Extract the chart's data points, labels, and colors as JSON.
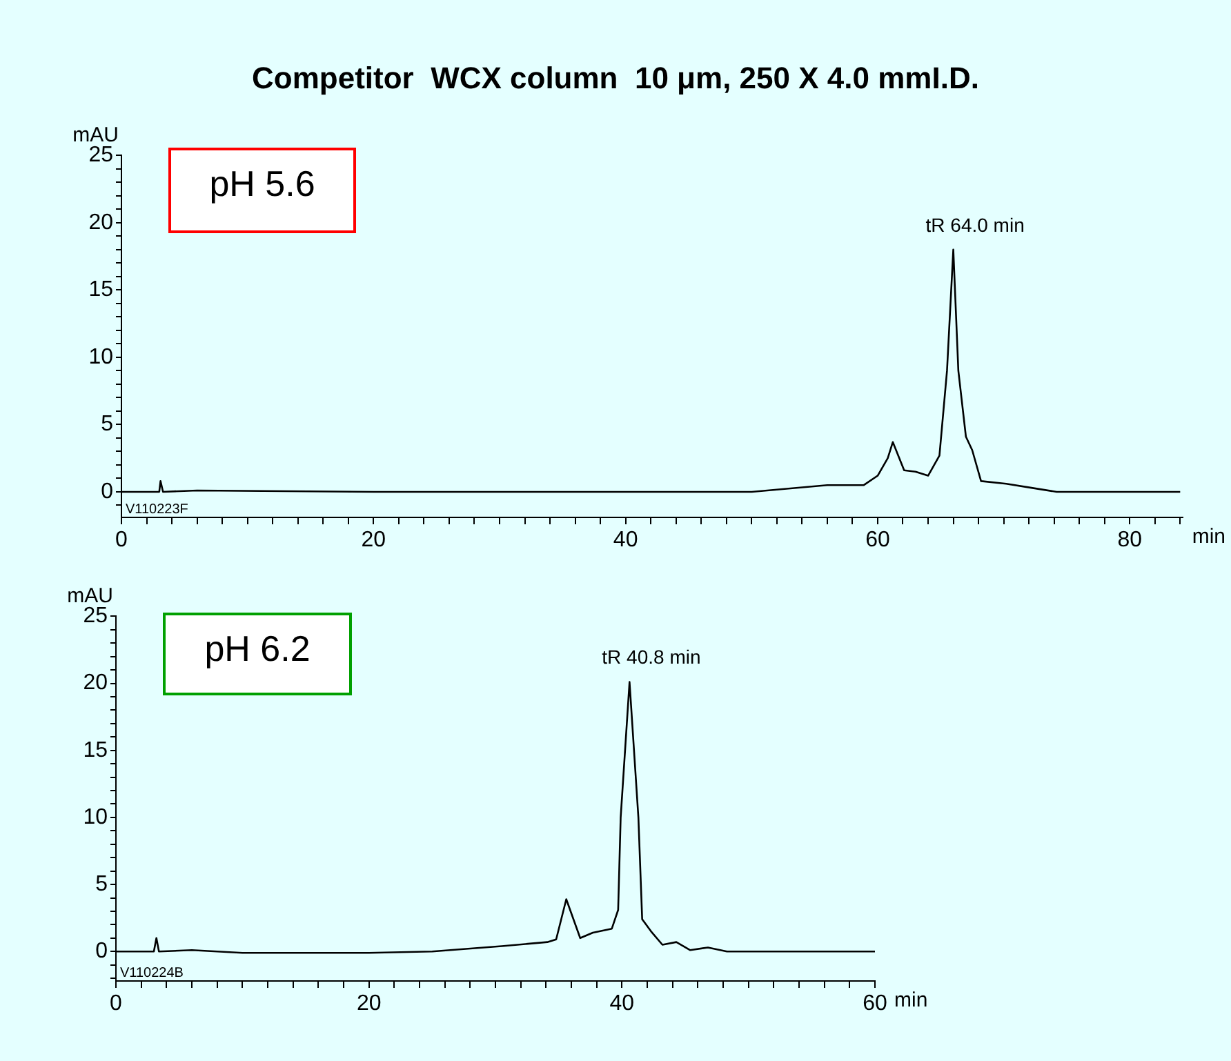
{
  "chart_data": [
    {
      "type": "line",
      "title": "Competitor  WCX column  10 μm, 250 X 4.0 mmI.D.",
      "xlabel": "min",
      "ylabel": "mAU",
      "color": "#000000",
      "marker": "none",
      "line_style": "solid",
      "grid": false,
      "legend": false,
      "x": [
        0,
        3.0,
        3.1,
        3.3,
        6,
        20,
        40,
        50,
        56.0,
        58.9,
        60.0,
        60.8,
        61.2,
        62.1,
        63.0,
        64.0,
        64.9,
        65.5,
        66.0,
        66.4,
        67.0,
        67.5,
        68.2,
        70.2,
        72.2,
        74.2,
        84
      ],
      "values": [
        0,
        0,
        0.8,
        0,
        0.1,
        0,
        0,
        0,
        0.5,
        0.5,
        1.2,
        2.5,
        3.7,
        1.6,
        1.5,
        1.2,
        2.7,
        9,
        18.0,
        9,
        4.1,
        3.1,
        0.8,
        0.6,
        0.3,
        0,
        0
      ],
      "xlim": [
        0,
        84.2
      ],
      "xticks": [
        0,
        {
          "value": 2,
          "label": null
        },
        {
          "value": 4,
          "label": null
        },
        {
          "value": 6,
          "label": null
        },
        {
          "value": 8,
          "label": null
        },
        {
          "value": 10,
          "label": null
        },
        {
          "value": 12,
          "label": null
        },
        {
          "value": 14,
          "label": null
        },
        {
          "value": 16,
          "label": null
        },
        {
          "value": 18,
          "label": null
        },
        20,
        {
          "value": 22,
          "label": null
        },
        {
          "value": 24,
          "label": null
        },
        {
          "value": 26,
          "label": null
        },
        {
          "value": 28,
          "label": null
        },
        {
          "value": 30,
          "label": null
        },
        {
          "value": 32,
          "label": null
        },
        {
          "value": 34,
          "label": null
        },
        {
          "value": 36,
          "label": null
        },
        {
          "value": 38,
          "label": null
        },
        40,
        {
          "value": 42,
          "label": null
        },
        {
          "value": 44,
          "label": null
        },
        {
          "value": 46,
          "label": null
        },
        {
          "value": 48,
          "label": null
        },
        {
          "value": 50,
          "label": null
        },
        {
          "value": 52,
          "label": null
        },
        {
          "value": 54,
          "label": null
        },
        {
          "value": 56,
          "label": null
        },
        {
          "value": 58,
          "label": null
        },
        60,
        {
          "value": 62,
          "label": null
        },
        {
          "value": 64,
          "label": null
        },
        {
          "value": 66,
          "label": null
        },
        {
          "value": 68,
          "label": null
        },
        {
          "value": 70,
          "label": null
        },
        {
          "value": 72,
          "label": null
        },
        {
          "value": 74,
          "label": null
        },
        {
          "value": 76,
          "label": null
        },
        {
          "value": 78,
          "label": null
        },
        80,
        {
          "value": 82,
          "label": null
        },
        {
          "value": 84,
          "label": null
        }
      ],
      "ylim": [
        -1.9,
        25
      ],
      "yticks": [
        {
          "value": -1,
          "label": null
        },
        0,
        {
          "value": 1,
          "label": null
        },
        {
          "value": 2,
          "label": null
        },
        {
          "value": 3,
          "label": null
        },
        {
          "value": 4,
          "label": null
        },
        5,
        {
          "value": 6,
          "label": null
        },
        {
          "value": 7,
          "label": null
        },
        {
          "value": 8,
          "label": null
        },
        {
          "value": 9,
          "label": null
        },
        10,
        {
          "value": 11,
          "label": null
        },
        {
          "value": 12,
          "label": null
        },
        {
          "value": 13,
          "label": null
        },
        {
          "value": 14,
          "label": null
        },
        15,
        {
          "value": 16,
          "label": null
        },
        {
          "value": 17,
          "label": null
        },
        {
          "value": 18,
          "label": null
        },
        {
          "value": 19,
          "label": null
        },
        20,
        {
          "value": 21,
          "label": null
        },
        {
          "value": 22,
          "label": null
        },
        {
          "value": 23,
          "label": null
        },
        {
          "value": 24,
          "label": null
        },
        25
      ],
      "annotations": [
        "pH 5.6",
        "V110223F",
        {
          "text": "tR 64.0 min",
          "x": 66.0,
          "y": 18.0
        }
      ]
    },
    {
      "type": "line",
      "xlabel": "min",
      "ylabel": "mAU",
      "color": "#000000",
      "marker": "none",
      "line_style": "solid",
      "grid": false,
      "legend": false,
      "x": [
        0,
        3.0,
        3.2,
        3.4,
        6,
        10,
        20,
        25,
        30.5,
        34.1,
        34.8,
        35.6,
        36.7,
        37.7,
        39.2,
        39.7,
        39.9,
        40.6,
        41.3,
        41.6,
        42.3,
        43.2,
        44.3,
        45.4,
        46.8,
        48.3,
        60
      ],
      "values": [
        0,
        0,
        1.0,
        0,
        0.1,
        -0.1,
        -0.1,
        0,
        0.4,
        0.7,
        0.9,
        3.9,
        1.0,
        1.4,
        1.7,
        3.1,
        10,
        20.1,
        10,
        2.4,
        1.5,
        0.5,
        0.7,
        0.1,
        0.3,
        0,
        0
      ],
      "xlim": [
        0,
        60
      ],
      "xticks": [
        0,
        {
          "value": 2,
          "label": null
        },
        {
          "value": 4,
          "label": null
        },
        {
          "value": 6,
          "label": null
        },
        {
          "value": 8,
          "label": null
        },
        {
          "value": 10,
          "label": null
        },
        {
          "value": 12,
          "label": null
        },
        {
          "value": 14,
          "label": null
        },
        {
          "value": 16,
          "label": null
        },
        {
          "value": 18,
          "label": null
        },
        20,
        {
          "value": 22,
          "label": null
        },
        {
          "value": 24,
          "label": null
        },
        {
          "value": 26,
          "label": null
        },
        {
          "value": 28,
          "label": null
        },
        {
          "value": 30,
          "label": null
        },
        {
          "value": 32,
          "label": null
        },
        {
          "value": 34,
          "label": null
        },
        {
          "value": 36,
          "label": null
        },
        {
          "value": 38,
          "label": null
        },
        40,
        {
          "value": 42,
          "label": null
        },
        {
          "value": 44,
          "label": null
        },
        {
          "value": 46,
          "label": null
        },
        {
          "value": 48,
          "label": null
        },
        {
          "value": 50,
          "label": null
        },
        {
          "value": 52,
          "label": null
        },
        {
          "value": 54,
          "label": null
        },
        {
          "value": 56,
          "label": null
        },
        {
          "value": 58,
          "label": null
        },
        60
      ],
      "ylim": [
        -2.2,
        25
      ],
      "yticks": [
        {
          "value": -2,
          "label": null
        },
        {
          "value": -1,
          "label": null
        },
        0,
        {
          "value": 1,
          "label": null
        },
        {
          "value": 2,
          "label": null
        },
        {
          "value": 3,
          "label": null
        },
        {
          "value": 4,
          "label": null
        },
        5,
        {
          "value": 6,
          "label": null
        },
        {
          "value": 7,
          "label": null
        },
        {
          "value": 8,
          "label": null
        },
        {
          "value": 9,
          "label": null
        },
        10,
        {
          "value": 11,
          "label": null
        },
        {
          "value": 12,
          "label": null
        },
        {
          "value": 13,
          "label": null
        },
        {
          "value": 14,
          "label": null
        },
        15,
        {
          "value": 16,
          "label": null
        },
        {
          "value": 17,
          "label": null
        },
        {
          "value": 18,
          "label": null
        },
        {
          "value": 19,
          "label": null
        },
        20,
        {
          "value": 21,
          "label": null
        },
        {
          "value": 22,
          "label": null
        },
        {
          "value": 23,
          "label": null
        },
        {
          "value": 24,
          "label": null
        },
        25
      ],
      "annotations": [
        "pH 6.2",
        "V110224B",
        {
          "text": "tR 40.8 min",
          "x": 40.6,
          "y": 20.1
        }
      ]
    }
  ]
}
